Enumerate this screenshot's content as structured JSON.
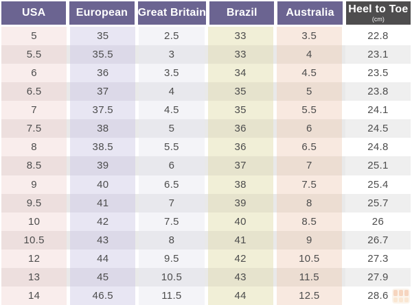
{
  "table": {
    "headers": [
      {
        "label": "USA"
      },
      {
        "label": "European"
      },
      {
        "label": "Great Britain"
      },
      {
        "label": "Brazil"
      },
      {
        "label": "Australia"
      },
      {
        "label": "Heel to Toe",
        "sub": "(cm)"
      }
    ],
    "rows": [
      [
        "5",
        "35",
        "2.5",
        "33",
        "3.5",
        "22.8"
      ],
      [
        "5.5",
        "35.5",
        "3",
        "33",
        "4",
        "23.1"
      ],
      [
        "6",
        "36",
        "3.5",
        "34",
        "4.5",
        "23.5"
      ],
      [
        "6.5",
        "37",
        "4",
        "35",
        "5",
        "23.8"
      ],
      [
        "7",
        "37.5",
        "4.5",
        "35",
        "5.5",
        "24.1"
      ],
      [
        "7.5",
        "38",
        "5",
        "36",
        "6",
        "24.5"
      ],
      [
        "8",
        "38.5",
        "5.5",
        "36",
        "6.5",
        "24.8"
      ],
      [
        "8.5",
        "39",
        "6",
        "37",
        "7",
        "25.1"
      ],
      [
        "9",
        "40",
        "6.5",
        "38",
        "7.5",
        "25.4"
      ],
      [
        "9.5",
        "41",
        "7",
        "39",
        "8",
        "25.7"
      ],
      [
        "10",
        "42",
        "7.5",
        "40",
        "8.5",
        "26"
      ],
      [
        "10.5",
        "43",
        "8",
        "41",
        "9",
        "26.7"
      ],
      [
        "12",
        "44",
        "9.5",
        "42",
        "10.5",
        "27.3"
      ],
      [
        "13",
        "45",
        "10.5",
        "43",
        "11.5",
        "27.9"
      ],
      [
        "14",
        "46.5",
        "11.5",
        "44",
        "12.5",
        "28.6"
      ]
    ]
  },
  "colors": {
    "header_purple": "#6b6491",
    "header_dark": "#4e4d4e",
    "cell_text": "#4c4c4c",
    "stripe_gap": "#e9e9e9",
    "gap_light": "#ffffff",
    "columns": [
      {
        "light": "#f9edec",
        "dark": "#eddfde"
      },
      {
        "light": "#e8e6f3",
        "dark": "#dcd9e8"
      },
      {
        "light": "#f4f4f8",
        "dark": "#e8e8ed"
      },
      {
        "light": "#f1efd7",
        "dark": "#e6e3cd"
      },
      {
        "light": "#f8e9e0",
        "dark": "#ecddd2"
      },
      {
        "light": "#ffffff",
        "dark": "#efefef"
      }
    ],
    "watermark_orange": "#e8935a",
    "watermark_light": "#f3c18e"
  },
  "watermark": {
    "icon": "grid-logo-icon"
  }
}
